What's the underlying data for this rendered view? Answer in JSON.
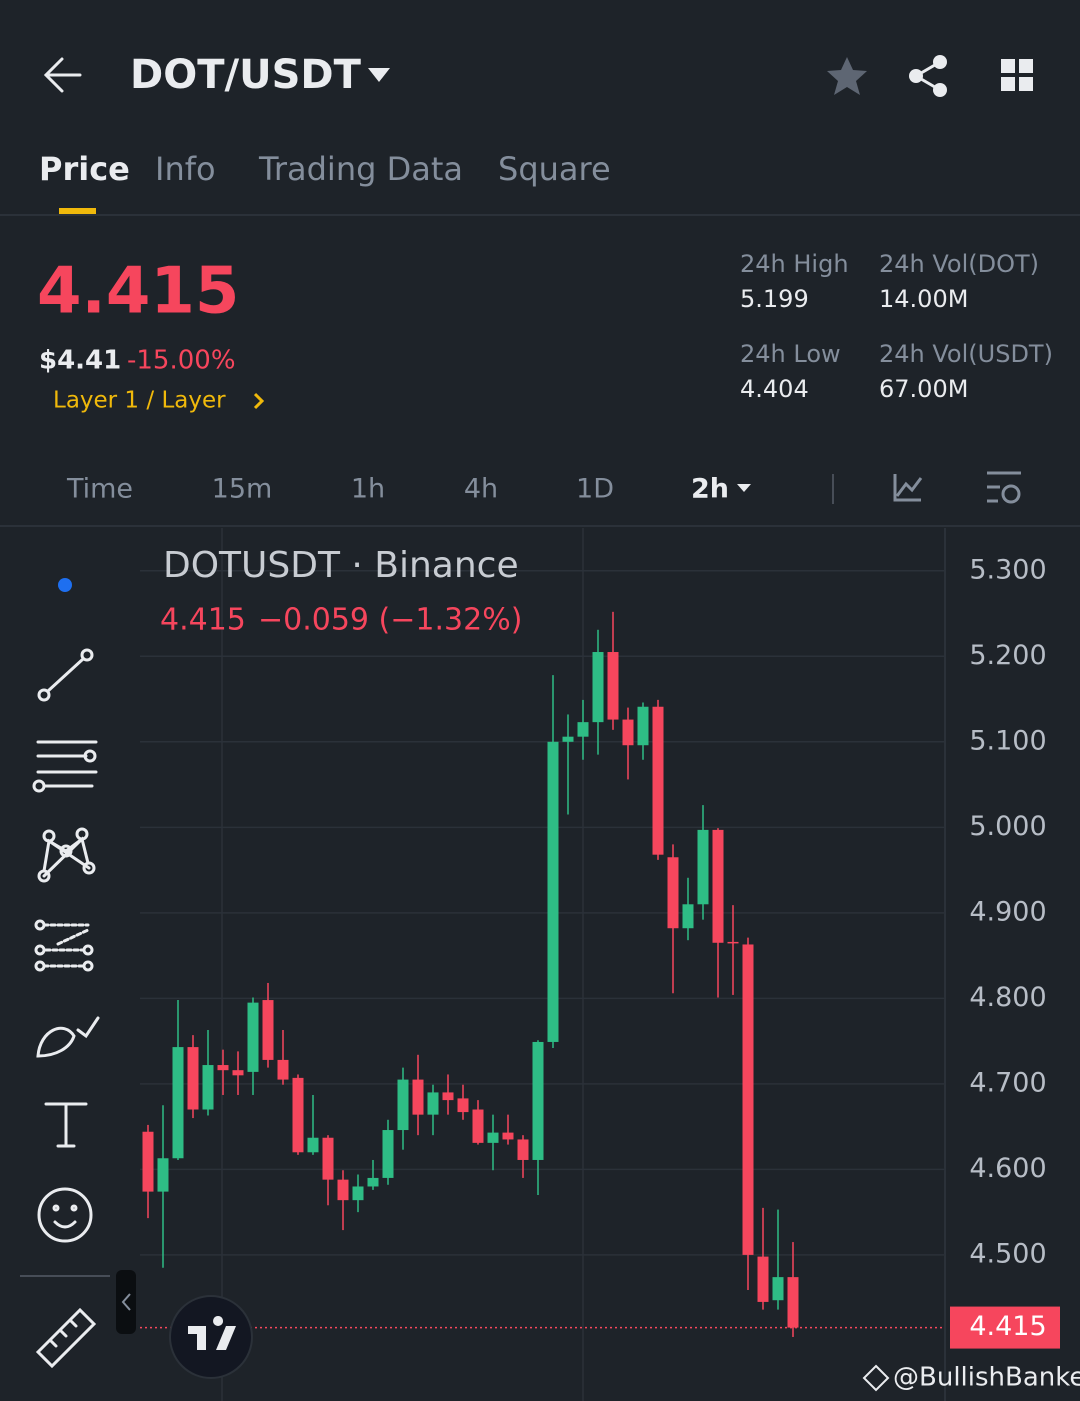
{
  "header": {
    "title": "DOT/USDT"
  },
  "tabs": {
    "items": [
      "Price",
      "Info",
      "Trading Data",
      "Square"
    ],
    "active": 0
  },
  "price": {
    "last": "4.415",
    "fiat": "$4.41",
    "change": "-15.00%",
    "tag": "Layer 1 / Layer"
  },
  "stats": [
    {
      "label": "24h High",
      "value": "5.199"
    },
    {
      "label": "24h Vol(DOT)",
      "value": "14.00M"
    },
    {
      "label": "24h Low",
      "value": "4.404"
    },
    {
      "label": "24h Vol(USDT)",
      "value": "67.00M"
    }
  ],
  "timeframes": {
    "items": [
      "Time",
      "15m",
      "1h",
      "4h",
      "1D",
      "2h"
    ],
    "active": 5
  },
  "chart_data": {
    "type": "candlestick",
    "title": "DOTUSDT · Binance",
    "subtitle": [
      "4.415",
      "−0.059 (−1.32%)"
    ],
    "up_color": "#2ebd85",
    "down_color": "#f6465d",
    "open": [
      4.644,
      4.574,
      4.613,
      4.743,
      4.67,
      4.722,
      4.716,
      4.714,
      4.798,
      4.728,
      4.707,
      4.62,
      4.637,
      4.588,
      4.564,
      4.58,
      4.59,
      4.646,
      4.705,
      4.664,
      4.69,
      4.683,
      4.67,
      4.631,
      4.643,
      4.635,
      4.611,
      4.749,
      5.1,
      5.106,
      5.123,
      5.205,
      5.126,
      5.096,
      5.141,
      4.965,
      4.882,
      4.91,
      4.997,
      4.866,
      4.863,
      4.498,
      4.447,
      4.474
    ],
    "high": [
      4.652,
      4.675,
      4.798,
      4.757,
      4.763,
      4.74,
      4.738,
      4.801,
      4.818,
      4.763,
      4.711,
      4.687,
      4.64,
      4.599,
      4.594,
      4.611,
      4.658,
      4.719,
      4.734,
      4.699,
      4.711,
      4.699,
      4.681,
      4.664,
      4.664,
      4.64,
      4.751,
      5.178,
      5.132,
      5.149,
      5.231,
      5.252,
      5.14,
      5.146,
      5.149,
      4.98,
      4.941,
      5.026,
      4.999,
      4.909,
      4.871,
      4.555,
      4.553,
      4.515
    ],
    "low": [
      4.543,
      4.485,
      4.611,
      4.66,
      4.663,
      4.687,
      4.687,
      4.687,
      4.719,
      4.699,
      4.617,
      4.617,
      4.558,
      4.529,
      4.55,
      4.576,
      4.582,
      4.623,
      4.64,
      4.64,
      4.664,
      4.658,
      4.629,
      4.599,
      4.629,
      4.59,
      4.57,
      4.742,
      5.015,
      5.079,
      5.085,
      5.114,
      5.056,
      5.079,
      4.962,
      4.806,
      4.868,
      4.892,
      4.801,
      4.804,
      4.459,
      4.436,
      4.436,
      4.404
    ],
    "close": [
      4.574,
      4.613,
      4.743,
      4.67,
      4.722,
      4.716,
      4.71,
      4.795,
      4.728,
      4.705,
      4.62,
      4.637,
      4.588,
      4.564,
      4.58,
      4.59,
      4.646,
      4.705,
      4.664,
      4.69,
      4.681,
      4.667,
      4.631,
      4.643,
      4.635,
      4.611,
      4.749,
      5.1,
      5.106,
      5.123,
      5.205,
      5.126,
      5.096,
      5.141,
      4.968,
      4.882,
      4.91,
      4.997,
      4.865,
      4.865,
      4.5,
      4.445,
      4.474,
      4.415
    ],
    "ylim": [
      4.342,
      5.336
    ],
    "yticks": [
      {
        "value": 5.3,
        "label": "5.300"
      },
      {
        "value": 5.2,
        "label": "5.200"
      },
      {
        "value": 5.1,
        "label": "5.100"
      },
      {
        "value": 5.0,
        "label": "5.000"
      },
      {
        "value": 4.9,
        "label": "4.900"
      },
      {
        "value": 4.8,
        "label": "4.800"
      },
      {
        "value": 4.7,
        "label": "4.700"
      },
      {
        "value": 4.6,
        "label": "4.600"
      },
      {
        "value": 4.5,
        "label": "4.500"
      }
    ],
    "last_price": {
      "value": 4.415,
      "label": "4.415"
    },
    "grid": true
  },
  "watermark": "@BullishBanker"
}
